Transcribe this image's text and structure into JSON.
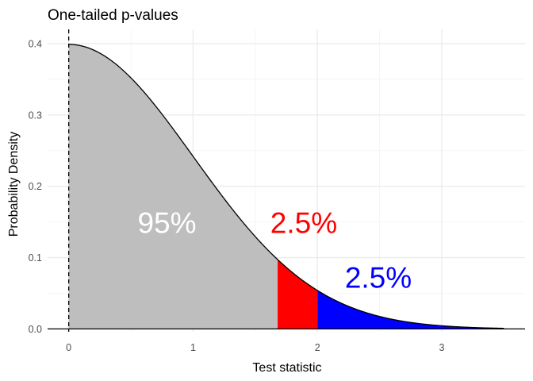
{
  "chart_data": {
    "type": "area",
    "title": "One-tailed p-values",
    "xlabel": "Test statistic",
    "ylabel": "Probability Density",
    "xlim": [
      -0.17,
      3.67
    ],
    "ylim": [
      -0.004,
      0.42
    ],
    "x_ticks": [
      0,
      1,
      2,
      3
    ],
    "y_ticks": [
      0.0,
      0.1,
      0.2,
      0.3,
      0.4
    ],
    "y_tick_labels": [
      "0.0",
      "0.1",
      "0.2",
      "0.3",
      "0.4"
    ],
    "grid": true,
    "curve": {
      "distribution": "standard normal density (half)",
      "x_range": [
        0,
        3.5
      ]
    },
    "regions": [
      {
        "from": 0,
        "to": 1.68,
        "color": "#bebebe",
        "label": "95%"
      },
      {
        "from": 1.68,
        "to": 2.0,
        "color": "#ff0000",
        "label": "2.5%"
      },
      {
        "from": 2.0,
        "to": 3.5,
        "color": "#0000ff",
        "label": "2.5%"
      }
    ],
    "annotations": [
      {
        "text": "95%",
        "x": 0.79,
        "y": 0.149,
        "color": "#ffffff"
      },
      {
        "text": "2.5%",
        "x": 1.89,
        "y": 0.149,
        "color": "#ff0000"
      },
      {
        "text": "2.5%",
        "x": 2.49,
        "y": 0.072,
        "color": "#0000ff"
      }
    ],
    "reference_line": {
      "x": 0,
      "style": "dashed"
    },
    "baseline": {
      "y": 0
    }
  }
}
